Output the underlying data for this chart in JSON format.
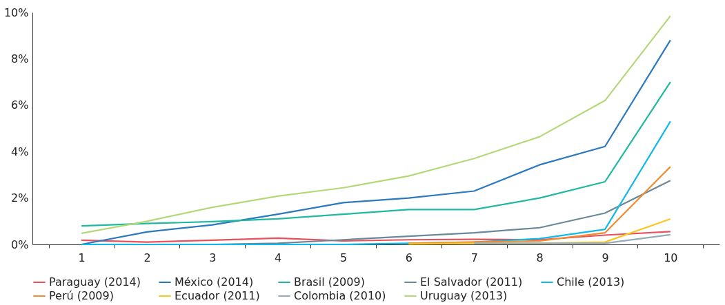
{
  "chart_data": {
    "type": "line",
    "categories": [
      "1",
      "2",
      "3",
      "4",
      "5",
      "6",
      "7",
      "8",
      "9",
      "10"
    ],
    "ylim": [
      0,
      10
    ],
    "yticks": [
      {
        "value": 0,
        "label": "0%"
      },
      {
        "value": 2,
        "label": "2%"
      },
      {
        "value": 4,
        "label": "4%"
      },
      {
        "value": 6,
        "label": "6%"
      },
      {
        "value": 8,
        "label": "8%"
      },
      {
        "value": 10,
        "label": "10%"
      }
    ],
    "grid": false,
    "legend": "bottom",
    "marker": "none",
    "line_style": "solid",
    "series": [
      {
        "name": "Paraguay (2014)",
        "color": "#e8505b",
        "values": [
          0.18,
          0.1,
          0.18,
          0.27,
          0.15,
          0.2,
          0.22,
          0.2,
          0.4,
          0.55
        ]
      },
      {
        "name": "México (2014)",
        "color": "#2a78c0",
        "values": [
          0,
          0.54,
          0.84,
          1.3,
          1.8,
          2.0,
          2.3,
          3.43,
          4.22,
          8.8
        ]
      },
      {
        "name": "Brasil (2009)",
        "color": "#20b8a0",
        "values": [
          0.8,
          0.9,
          0.98,
          1.1,
          1.3,
          1.5,
          1.5,
          2.0,
          2.7,
          7.0
        ]
      },
      {
        "name": "El Salvador (2011)",
        "color": "#6a8898",
        "values": [
          0,
          0,
          0,
          0.05,
          0.2,
          0.35,
          0.5,
          0.72,
          1.35,
          2.75
        ]
      },
      {
        "name": "Chile (2013)",
        "color": "#12b8e8",
        "values": [
          0,
          0,
          0,
          0,
          0,
          0.05,
          0.1,
          0.25,
          0.65,
          5.3
        ]
      },
      {
        "name": "Perú (2009)",
        "color": "#f08c30",
        "values": [
          null,
          null,
          null,
          null,
          null,
          0.05,
          0.1,
          0.15,
          0.5,
          3.35
        ]
      },
      {
        "name": "Ecuador (2011)",
        "color": "#f8c820",
        "values": [
          null,
          null,
          null,
          null,
          null,
          0.02,
          0.05,
          0.05,
          0.1,
          1.1
        ]
      },
      {
        "name": "Colombia (2010)",
        "color": "#98aab8",
        "values": [
          null,
          null,
          null,
          null,
          null,
          null,
          0.05,
          0.05,
          0.05,
          0.42
        ]
      },
      {
        "name": "Uruguay (2013)",
        "color": "#b4d878",
        "values": [
          0.48,
          1.0,
          1.6,
          2.08,
          2.44,
          2.95,
          3.7,
          4.64,
          6.2,
          9.85
        ]
      }
    ]
  }
}
